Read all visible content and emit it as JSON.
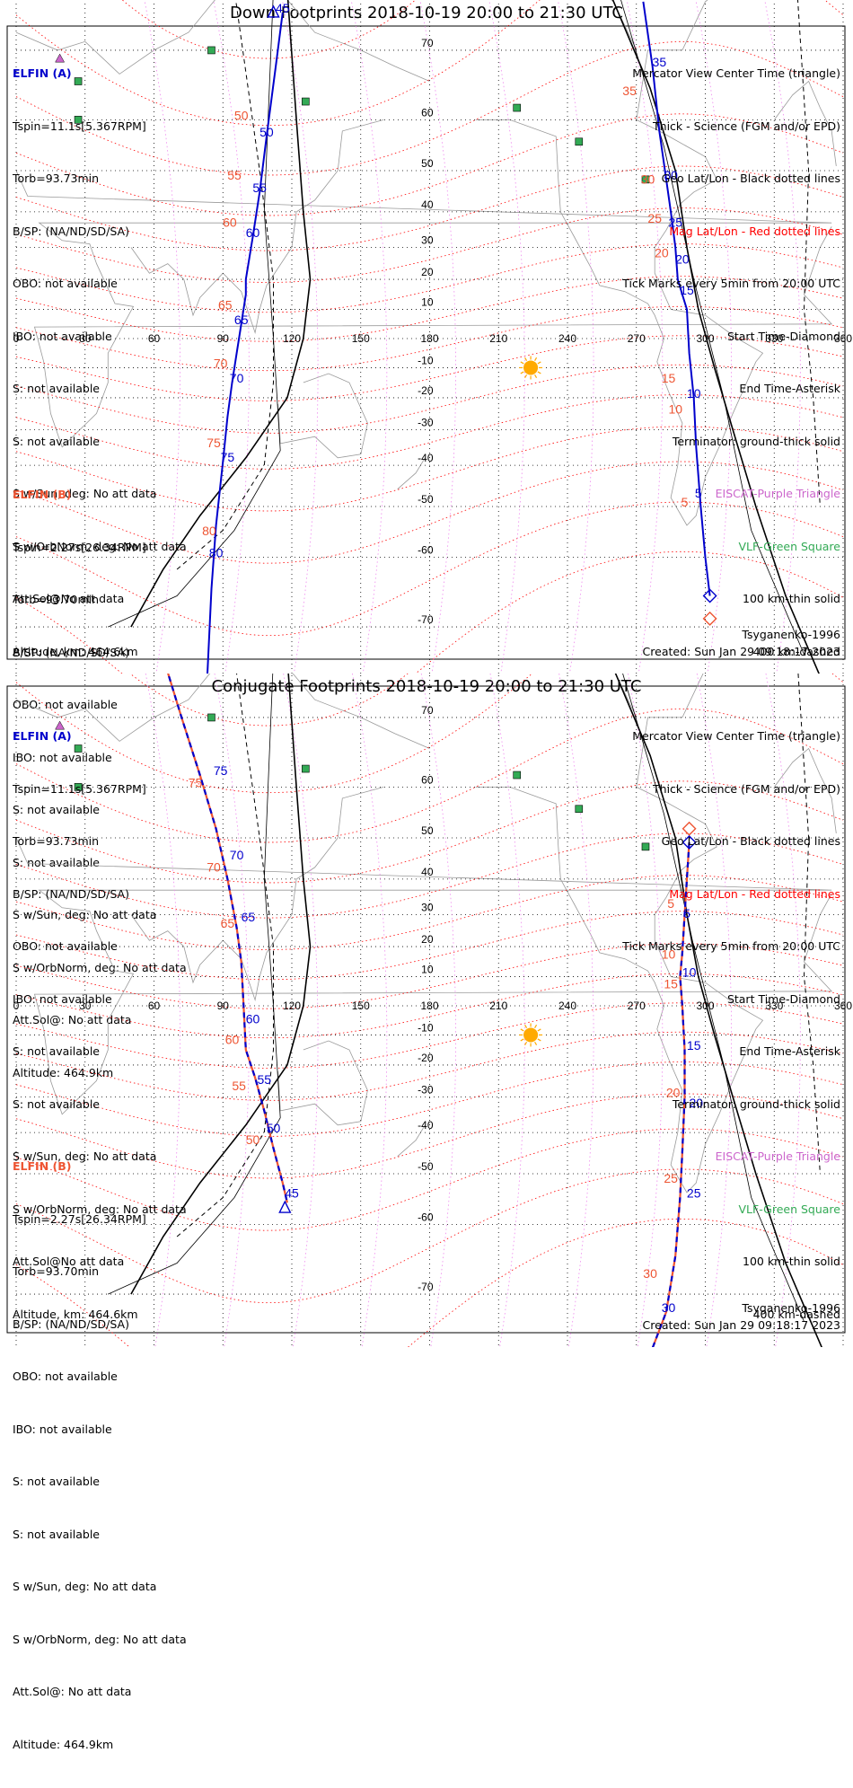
{
  "panels": [
    {
      "title": "Down Footprints 2018-10-19 20:00 to 21:30 UTC",
      "elfin_a": {
        "header": "ELFIN (A)",
        "lines": [
          "Tspin=11.1s[5.367RPM]",
          "Torb=93.73min",
          "B/SP: (NA/ND/SD/SA)",
          "OBO: not available",
          "IBO: not available",
          "S: not available",
          "S: not available",
          "S w/Sun, deg: No att data",
          "S w/OrbNorm, deg: No att data",
          "Att.Sol@No att data",
          "Altitude, km: 464.6km"
        ]
      },
      "elfin_b": {
        "header": "ELFIN (B)",
        "lines": [
          "Tspin=2.27s[26.34RPM]",
          "Torb=93.70min",
          "B/SP: (NA/ND/SD/SA)",
          "OBO: not available",
          "IBO: not available",
          "S: not available",
          "S: not available",
          "S w/Sun, deg: No att data",
          "S w/OrbNorm, deg: No att data",
          "Att.Sol@: No att data",
          "Altitude: 464.9km"
        ]
      },
      "legend": [
        "Mercator View Center Time (triangle)",
        "Thick - Science (FGM and/or EPD)",
        "Geo Lat/Lon - Black dotted lines",
        "Mag Lat/Lon - Red dotted lines",
        "Tick Marks every 5min from 20:00 UTC",
        "Start Time-Diamond",
        "End Time-Asterisk",
        "Terminator: ground-thick solid",
        "EISCAT-Purple Triangle",
        "VLF-Green Square",
        "100 km-thin solid",
        "400 km-dashed"
      ],
      "footer_model": "Tsyganenko-1996",
      "footer_created": "Created: Sun Jan 29 09:18:17 2023"
    },
    {
      "title": "Conjugate Footprints 2018-10-19 20:00 to 21:30 UTC",
      "elfin_a": {
        "header": "ELFIN (A)",
        "lines": [
          "Tspin=11.1s[5.367RPM]",
          "Torb=93.73min",
          "B/SP: (NA/ND/SD/SA)",
          "OBO: not available",
          "IBO: not available",
          "S: not available",
          "S: not available",
          "S w/Sun, deg: No att data",
          "S w/OrbNorm, deg: No att data",
          "Att.Sol@No att data",
          "Altitude, km: 464.6km"
        ]
      },
      "elfin_b": {
        "header": "ELFIN (B)",
        "lines": [
          "Tspin=2.27s[26.34RPM]",
          "Torb=93.70min",
          "B/SP: (NA/ND/SD/SA)",
          "OBO: not available",
          "IBO: not available",
          "S: not available",
          "S: not available",
          "S w/Sun, deg: No att data",
          "S w/OrbNorm, deg: No att data",
          "Att.Sol@: No att data",
          "Altitude: 464.9km"
        ]
      },
      "legend": [
        "Mercator View Center Time (triangle)",
        "Thick - Science (FGM and/or EPD)",
        "Geo Lat/Lon - Black dotted lines",
        "Mag Lat/Lon - Red dotted lines",
        "Tick Marks every 5min from 20:00 UTC",
        "Start Time-Diamond",
        "End Time-Asterisk",
        "Terminator: ground-thick solid",
        "EISCAT-Purple Triangle",
        "VLF-Green Square",
        "100 km-thin solid",
        "400 km-dashed"
      ],
      "footer_model": "Tsyganenko-1996",
      "footer_created": "Created: Sun Jan 29 09:18:17 2023"
    }
  ],
  "colors": {
    "elfin_a": "#0000cc",
    "elfin_b": "#ee5533",
    "mag_grid": "#ff0000",
    "geo_grid": "#000000",
    "eiscat": "#cc66cc",
    "vlf": "#33aa55",
    "sun": "#ffaa00",
    "coast": "#999999"
  },
  "chart_data": [
    {
      "type": "scatter",
      "projection": "mercator",
      "x_ticks": [
        0,
        30,
        60,
        90,
        120,
        150,
        180,
        210,
        240,
        270,
        300,
        330,
        360
      ],
      "y_ticks": [
        70,
        60,
        50,
        40,
        30,
        20,
        10,
        -10,
        -20,
        -30,
        -40,
        -50,
        -60,
        -70
      ],
      "xlim": [
        0,
        360
      ],
      "ylim": [
        -78,
        78
      ],
      "series": [
        {
          "name": "ELFIN (A)",
          "role": "track_west",
          "points": [
            [
              116,
              74
            ],
            [
              113,
              68
            ],
            [
              109,
              57
            ],
            [
              106,
              45
            ],
            [
              103,
              33
            ],
            [
              100,
              20
            ],
            [
              100,
              15
            ],
            [
              98,
              5
            ],
            [
              96,
              -5
            ],
            [
              94,
              -15
            ],
            [
              92,
              -26
            ],
            [
              90,
              -39
            ],
            [
              87,
              -54
            ],
            [
              85,
              -65
            ],
            [
              83,
              -76
            ]
          ],
          "tick_labels": [
            {
              "t": "45",
              "lon": 116,
              "lat": 74
            },
            {
              "t": "50",
              "lon": 109,
              "lat": 57
            },
            {
              "t": "55",
              "lon": 106,
              "lat": 45
            },
            {
              "t": "60",
              "lon": 103,
              "lat": 33
            },
            {
              "t": "65",
              "lon": 98,
              "lat": 5
            },
            {
              "t": "70",
              "lon": 96,
              "lat": -15
            },
            {
              "t": "75",
              "lon": 92,
              "lat": -39
            },
            {
              "t": "80",
              "lon": 87,
              "lat": -60
            }
          ]
        },
        {
          "name": "ELFIN (B)",
          "role": "labels_west",
          "tick_labels": [
            {
              "t": "45",
              "lon": 108,
              "lat": 77
            },
            {
              "t": "50",
              "lon": 98,
              "lat": 60
            },
            {
              "t": "55",
              "lon": 95,
              "lat": 48
            },
            {
              "t": "60",
              "lon": 93,
              "lat": 36
            },
            {
              "t": "65",
              "lon": 91,
              "lat": 10
            },
            {
              "t": "70",
              "lon": 89,
              "lat": -10
            },
            {
              "t": "75",
              "lon": 86,
              "lat": -35
            },
            {
              "t": "80",
              "lon": 84,
              "lat": -56
            },
            {
              "t": "85",
              "lon": 80,
              "lat": -76
            }
          ]
        },
        {
          "name": "ELFIN (A)",
          "role": "track_east",
          "points": [
            [
              273,
              75
            ],
            [
              277,
              68
            ],
            [
              280,
              58
            ],
            [
              283,
              48
            ],
            [
              285,
              40
            ],
            [
              287,
              30
            ],
            [
              288,
              20
            ],
            [
              290,
              15
            ],
            [
              292,
              10
            ],
            [
              293,
              -5
            ],
            [
              295,
              -20
            ],
            [
              296,
              -35
            ],
            [
              298,
              -50
            ],
            [
              300,
              -60
            ],
            [
              302,
              -66
            ]
          ],
          "tick_labels": [
            {
              "t": "35",
              "lon": 280,
              "lat": 68
            },
            {
              "t": "30",
              "lon": 285,
              "lat": 48
            },
            {
              "t": "25",
              "lon": 287,
              "lat": 36
            },
            {
              "t": "20",
              "lon": 290,
              "lat": 25
            },
            {
              "t": "15",
              "lon": 292,
              "lat": 15
            },
            {
              "t": "10",
              "lon": 295,
              "lat": -20
            },
            {
              "t": "5",
              "lon": 297,
              "lat": -48
            }
          ]
        },
        {
          "name": "ELFIN (B)",
          "role": "labels_east",
          "tick_labels": [
            {
              "t": "35",
              "lon": 267,
              "lat": 64
            },
            {
              "t": "30",
              "lon": 275,
              "lat": 47
            },
            {
              "t": "25",
              "lon": 278,
              "lat": 37
            },
            {
              "t": "20",
              "lon": 281,
              "lat": 27
            },
            {
              "t": "15",
              "lon": 284,
              "lat": -15
            },
            {
              "t": "10",
              "lon": 287,
              "lat": -25
            },
            {
              "t": "5",
              "lon": 291,
              "lat": -50
            }
          ]
        }
      ],
      "markers": [
        {
          "kind": "triangle",
          "series": "ELFIN (B)",
          "lon": 116,
          "lat": 77
        },
        {
          "kind": "triangle",
          "series": "ELFIN (A)",
          "lon": 112,
          "lat": 74
        },
        {
          "kind": "diamond",
          "series": "ELFIN (A)",
          "lon": 302,
          "lat": -66
        },
        {
          "kind": "diamond",
          "series": "ELFIN (B)",
          "lon": 302,
          "lat": -69
        }
      ]
    },
    {
      "type": "scatter",
      "projection": "mercator",
      "x_ticks": [
        0,
        30,
        60,
        90,
        120,
        150,
        180,
        210,
        240,
        270,
        300,
        330,
        360
      ],
      "y_ticks": [
        70,
        60,
        50,
        40,
        30,
        20,
        10,
        -10,
        -20,
        -30,
        -40,
        -50,
        -60,
        -70
      ],
      "xlim": [
        0,
        360
      ],
      "ylim": [
        -78,
        78
      ],
      "series": [
        {
          "name": "ELFIN (A)",
          "role": "track_west",
          "dashed": true,
          "points": [
            [
              64,
              76
            ],
            [
              72,
              70
            ],
            [
              80,
              62
            ],
            [
              87,
              52
            ],
            [
              92,
              40
            ],
            [
              96,
              26
            ],
            [
              98,
              15
            ],
            [
              99,
              0
            ],
            [
              100,
              -15
            ],
            [
              104,
              -24
            ],
            [
              108,
              -34
            ],
            [
              112,
              -44
            ],
            [
              116,
              -52
            ],
            [
              118,
              -56
            ]
          ],
          "tick_labels": [
            {
              "t": "75",
              "lon": 89,
              "lat": 62
            },
            {
              "t": "70",
              "lon": 96,
              "lat": 45
            },
            {
              "t": "65",
              "lon": 101,
              "lat": 28
            },
            {
              "t": "60",
              "lon": 103,
              "lat": -6
            },
            {
              "t": "55",
              "lon": 108,
              "lat": -26
            },
            {
              "t": "50",
              "lon": 112,
              "lat": -40
            },
            {
              "t": "45",
              "lon": 120,
              "lat": -55
            }
          ]
        },
        {
          "name": "ELFIN (B)",
          "role": "labels_west",
          "tick_labels": [
            {
              "t": "80",
              "lon": 60,
              "lat": 77
            },
            {
              "t": "75",
              "lon": 78,
              "lat": 60
            },
            {
              "t": "70",
              "lon": 86,
              "lat": 42
            },
            {
              "t": "65",
              "lon": 92,
              "lat": 26
            },
            {
              "t": "60",
              "lon": 94,
              "lat": -13
            },
            {
              "t": "55",
              "lon": 97,
              "lat": -28
            },
            {
              "t": "50",
              "lon": 103,
              "lat": -43
            }
          ]
        },
        {
          "name": "ELFIN (A)",
          "role": "track_east",
          "dashed": true,
          "points": [
            [
              293,
              49
            ],
            [
              292,
              40
            ],
            [
              291,
              30
            ],
            [
              290,
              18
            ],
            [
              289,
              10
            ],
            [
              290,
              0
            ],
            [
              291,
              -15
            ],
            [
              291,
              -30
            ],
            [
              290,
              -45
            ],
            [
              289,
              -55
            ],
            [
              287,
              -65
            ],
            [
              283,
              -72
            ],
            [
              276,
              -76
            ]
          ],
          "tick_labels": [
            {
              "t": "5",
              "lon": 292,
              "lat": 29
            },
            {
              "t": "10",
              "lon": 293,
              "lat": 10
            },
            {
              "t": "15",
              "lon": 295,
              "lat": -15
            },
            {
              "t": "20",
              "lon": 296,
              "lat": -33
            },
            {
              "t": "25",
              "lon": 295,
              "lat": -55
            },
            {
              "t": "30",
              "lon": 284,
              "lat": -72
            }
          ]
        },
        {
          "name": "ELFIN (B)",
          "role": "labels_east",
          "tick_labels": [
            {
              "t": "5",
              "lon": 285,
              "lat": 32
            },
            {
              "t": "10",
              "lon": 284,
              "lat": 16
            },
            {
              "t": "15",
              "lon": 285,
              "lat": 6
            },
            {
              "t": "20",
              "lon": 286,
              "lat": -30
            },
            {
              "t": "25",
              "lon": 285,
              "lat": -52
            },
            {
              "t": "30",
              "lon": 276,
              "lat": -68
            }
          ]
        }
      ],
      "markers": [
        {
          "kind": "diamond",
          "series": "ELFIN (B)",
          "lon": 293,
          "lat": 52
        },
        {
          "kind": "diamond",
          "series": "ELFIN (A)",
          "lon": 293,
          "lat": 49
        },
        {
          "kind": "triangle",
          "series": "ELFIN (A)",
          "lon": 117,
          "lat": -57
        }
      ]
    }
  ],
  "map_features": {
    "sun": {
      "lon": 224,
      "lat": -10
    },
    "vlf_sites": [
      [
        85,
        70
      ],
      [
        27,
        66
      ],
      [
        27,
        60
      ],
      [
        126,
        63
      ],
      [
        218,
        62
      ],
      [
        245,
        56
      ],
      [
        274,
        48
      ]
    ],
    "eiscat_sites": [
      [
        19,
        69
      ]
    ]
  }
}
